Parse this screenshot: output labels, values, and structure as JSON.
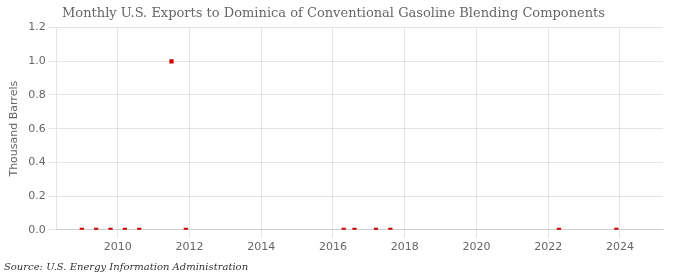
{
  "chart_data": {
    "type": "scatter",
    "title": "Monthly U.S. Exports to Dominica of Conventional Gasoline Blending Components",
    "ylabel": "Thousand Barrels",
    "annotation": "Source: U.S. Energy Information Administration",
    "x": [
      2009.0,
      2009.4,
      2009.8,
      2010.2,
      2010.6,
      2011.5,
      2011.9,
      2016.3,
      2016.6,
      2017.2,
      2017.6,
      2022.3,
      2023.9
    ],
    "values": [
      0.0,
      0.0,
      0.0,
      0.0,
      0.0,
      1.0,
      0.0,
      0.0,
      0.0,
      0.0,
      0.0,
      0.0,
      0.0
    ],
    "color": "#cc0000",
    "marker": "square",
    "xlim": [
      2008.3,
      2025.2
    ],
    "ylim": [
      0.0,
      1.2
    ],
    "xticks": [
      2010,
      2012,
      2014,
      2016,
      2018,
      2020,
      2022,
      2024
    ],
    "yticks": [
      {
        "value": 0.0,
        "label": "0.0"
      },
      0.2,
      0.4,
      0.6,
      0.8,
      {
        "value": 1.0,
        "label": "1.0"
      },
      1.2
    ],
    "grid": true
  }
}
